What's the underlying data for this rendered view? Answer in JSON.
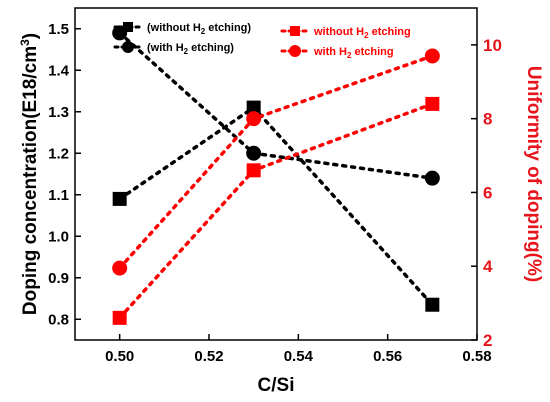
{
  "chart_data": {
    "type": "line",
    "xlabel": "C/Si",
    "ylabel_left": "Doping concentration(E18/cm",
    "ylabel_left_sup": "3",
    "ylabel_left_close": ")",
    "ylabel_right": "Uniformity of doping(%)",
    "xlim": [
      0.49,
      0.58
    ],
    "ylim_left": [
      0.75,
      1.55
    ],
    "ylim_right": [
      2,
      11.0
    ],
    "x_ticks": [
      0.5,
      0.52,
      0.54,
      0.56,
      0.58
    ],
    "x_tick_labels": [
      "0.50",
      "0.52",
      "0.54",
      "0.56",
      "0.58"
    ],
    "y_left_ticks": [
      0.8,
      0.9,
      1.0,
      1.1,
      1.2,
      1.3,
      1.4,
      1.5
    ],
    "y_left_tick_labels": [
      "0.8",
      "0.9",
      "1.0",
      "1.1",
      "1.2",
      "1.3",
      "1.4",
      "1.5"
    ],
    "y_right_ticks": [
      2,
      4,
      6,
      8,
      10
    ],
    "y_right_tick_labels": [
      "2",
      "4",
      "6",
      "8",
      "10"
    ],
    "x": [
      0.5,
      0.53,
      0.57
    ],
    "grid": false,
    "series": [
      {
        "key": "conc_without",
        "axis": "left",
        "marker": "square",
        "color": "#000000",
        "values": [
          1.09,
          1.31,
          0.835
        ]
      },
      {
        "key": "conc_with",
        "axis": "left",
        "marker": "circle",
        "color": "#000000",
        "values": [
          1.49,
          1.2,
          1.14
        ]
      },
      {
        "key": "unif_without",
        "axis": "right",
        "marker": "square",
        "color": "#ff0000",
        "values": [
          2.6,
          6.6,
          8.4
        ]
      },
      {
        "key": "unif_with",
        "axis": "right",
        "marker": "circle",
        "color": "#ff0000",
        "values": [
          3.95,
          8.0,
          9.7
        ]
      }
    ],
    "legend_left": {
      "placement": "top-left",
      "items": [
        {
          "series": "conc_without",
          "pre": "(without H",
          "sub": "2",
          "post": " etching)"
        },
        {
          "series": "conc_with",
          "pre": "(with H",
          "sub": "2",
          "post": " etching)"
        }
      ]
    },
    "legend_right": {
      "placement": "top-center",
      "items": [
        {
          "series": "unif_without",
          "pre": "without H",
          "sub": "2",
          "post": " etching"
        },
        {
          "series": "unif_with",
          "pre": "with H",
          "sub": "2",
          "post": " etching"
        }
      ]
    },
    "colors": {
      "left_axis": "#000000",
      "right_axis": "#e8141b"
    }
  }
}
